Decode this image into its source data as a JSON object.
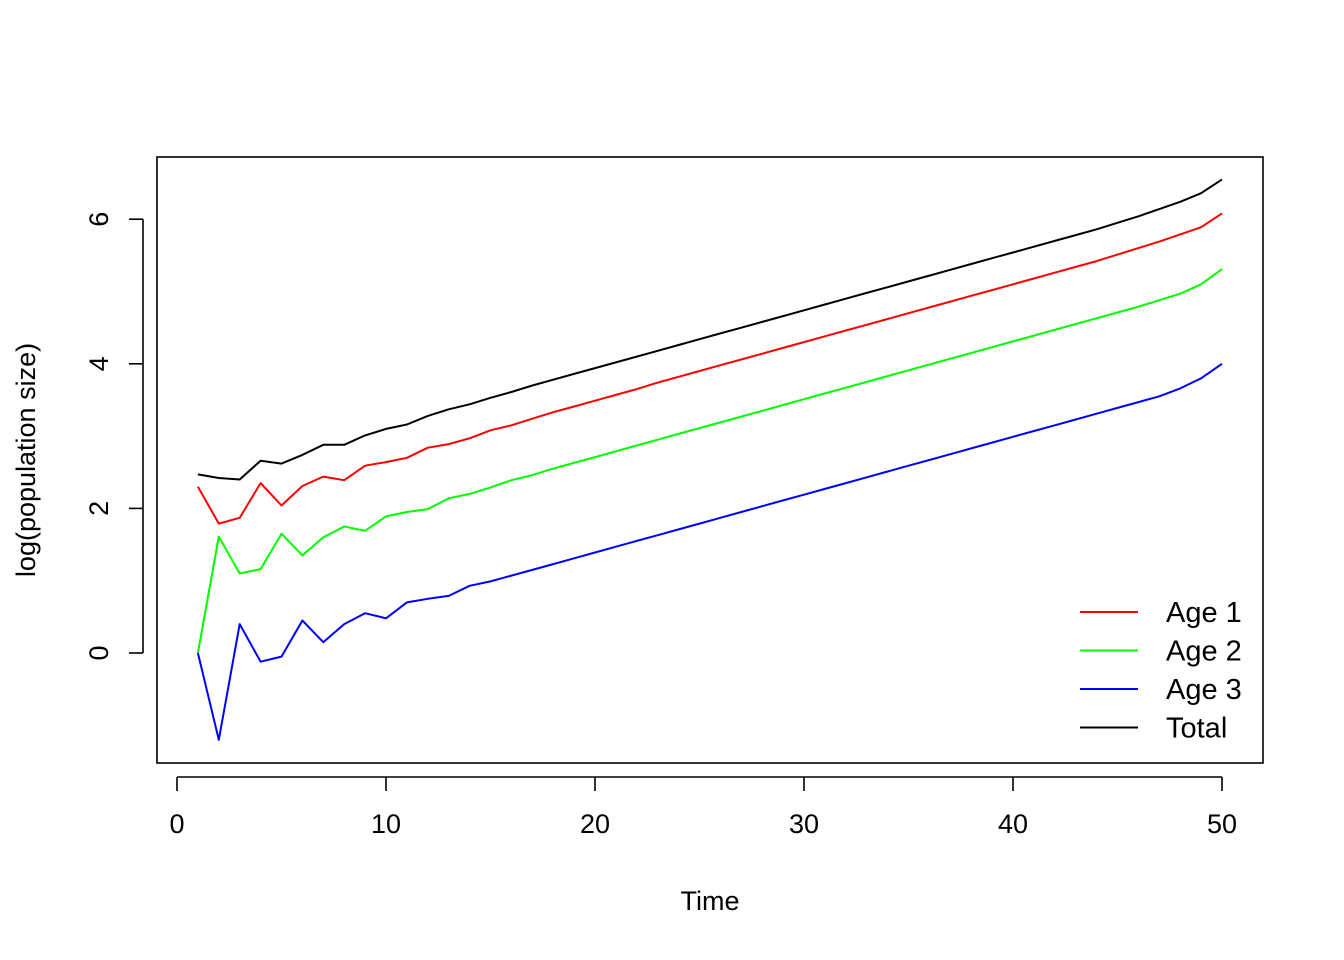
{
  "chart_data": {
    "type": "line",
    "title": "",
    "xlabel": "Time",
    "ylabel": "log(population size)",
    "xlim": [
      0,
      50
    ],
    "ylim": [
      -1.2,
      6.55
    ],
    "x_ticks": [
      "0",
      "10",
      "20",
      "30",
      "40",
      "50"
    ],
    "y_ticks": [
      "0",
      "2",
      "4",
      "6"
    ],
    "grid": false,
    "legend_position": "bottom-right",
    "x": [
      1,
      2,
      3,
      4,
      5,
      6,
      7,
      8,
      9,
      10,
      11,
      12,
      13,
      14,
      15,
      16,
      17,
      18,
      19,
      20,
      21,
      22,
      23,
      24,
      25,
      26,
      27,
      28,
      29,
      30,
      31,
      32,
      33,
      34,
      35,
      36,
      37,
      38,
      39,
      40,
      41,
      42,
      43,
      44,
      45,
      46,
      47,
      48,
      49,
      50
    ],
    "series": [
      {
        "name": "Age 1",
        "color": "#ff0000",
        "values": [
          2.3,
          1.79,
          1.87,
          2.35,
          2.04,
          2.31,
          2.44,
          2.39,
          2.59,
          2.64,
          2.7,
          2.84,
          2.89,
          2.97,
          3.08,
          3.15,
          3.24,
          3.33,
          3.41,
          3.49,
          3.57,
          3.65,
          3.74,
          3.82,
          3.9,
          3.98,
          4.06,
          4.14,
          4.22,
          4.3,
          4.38,
          4.46,
          4.54,
          4.62,
          4.7,
          4.78,
          4.86,
          4.94,
          5.02,
          5.1,
          5.18,
          5.26,
          5.34,
          5.42,
          5.51,
          5.6,
          5.69,
          5.79,
          5.89,
          6.08
        ]
      },
      {
        "name": "Age 2",
        "color": "#00ff00",
        "values": [
          0.0,
          1.61,
          1.1,
          1.16,
          1.65,
          1.35,
          1.6,
          1.75,
          1.69,
          1.89,
          1.95,
          1.99,
          2.14,
          2.2,
          2.29,
          2.39,
          2.46,
          2.55,
          2.63,
          2.71,
          2.79,
          2.87,
          2.95,
          3.03,
          3.11,
          3.19,
          3.27,
          3.35,
          3.43,
          3.51,
          3.59,
          3.67,
          3.75,
          3.83,
          3.91,
          3.99,
          4.07,
          4.15,
          4.23,
          4.31,
          4.39,
          4.47,
          4.55,
          4.63,
          4.71,
          4.79,
          4.88,
          4.97,
          5.1,
          5.31
        ]
      },
      {
        "name": "Age 3",
        "color": "#0000ff",
        "values": [
          0.0,
          -1.2,
          0.4,
          -0.12,
          -0.05,
          0.45,
          0.15,
          0.4,
          0.55,
          0.48,
          0.7,
          0.75,
          0.79,
          0.93,
          0.99,
          1.07,
          1.15,
          1.23,
          1.31,
          1.39,
          1.47,
          1.55,
          1.63,
          1.71,
          1.79,
          1.87,
          1.95,
          2.03,
          2.11,
          2.19,
          2.27,
          2.35,
          2.43,
          2.51,
          2.59,
          2.67,
          2.75,
          2.83,
          2.91,
          2.99,
          3.07,
          3.15,
          3.23,
          3.31,
          3.39,
          3.47,
          3.55,
          3.66,
          3.8,
          4.0
        ]
      },
      {
        "name": "Total",
        "color": "#000000",
        "values": [
          2.47,
          2.42,
          2.4,
          2.66,
          2.62,
          2.74,
          2.88,
          2.88,
          3.01,
          3.1,
          3.16,
          3.28,
          3.37,
          3.44,
          3.53,
          3.61,
          3.7,
          3.78,
          3.86,
          3.94,
          4.02,
          4.1,
          4.18,
          4.26,
          4.34,
          4.42,
          4.5,
          4.58,
          4.66,
          4.74,
          4.82,
          4.9,
          4.98,
          5.06,
          5.14,
          5.22,
          5.3,
          5.38,
          5.46,
          5.54,
          5.62,
          5.7,
          5.78,
          5.86,
          5.95,
          6.04,
          6.14,
          6.24,
          6.36,
          6.55
        ]
      }
    ]
  }
}
